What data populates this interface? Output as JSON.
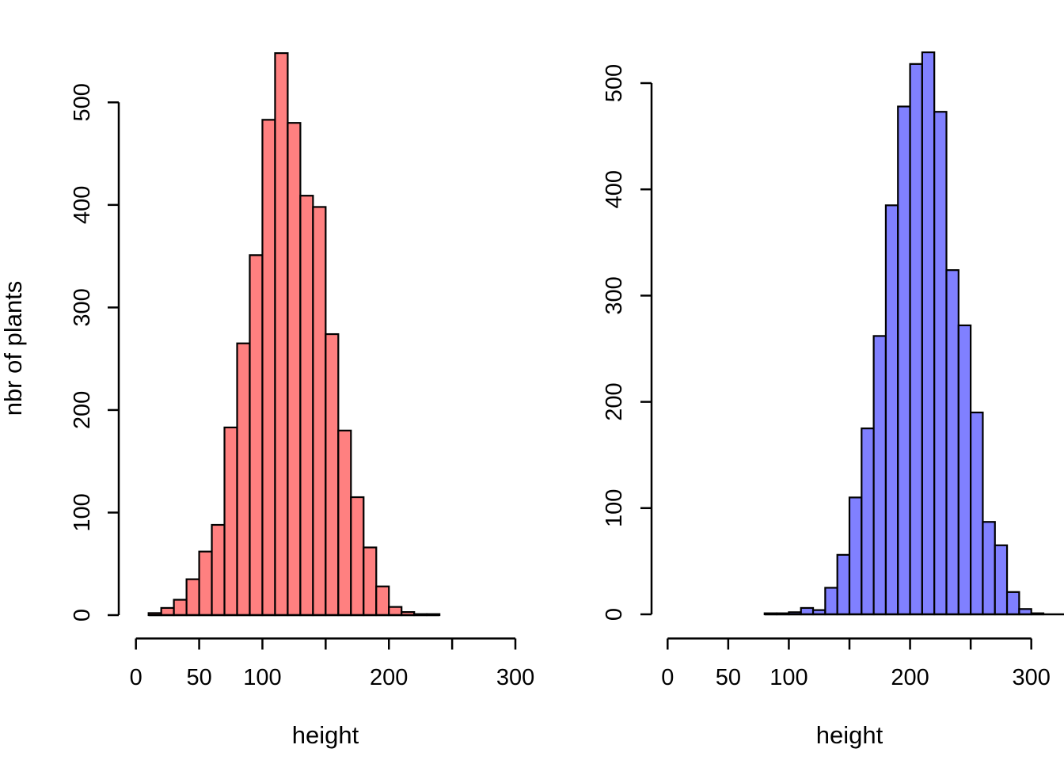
{
  "figure": {
    "background_color": "#FFFFFF",
    "description": "Two side-by-side base-R style histograms of plant heights"
  },
  "chart_data": [
    {
      "type": "bar",
      "variant": "histogram",
      "panel": "left",
      "title": "",
      "xlabel": "height",
      "ylabel": "nbr of plants",
      "bar_color": "#FF8080",
      "bar_border": "#000000",
      "grid": "off",
      "legend": "none",
      "xlim": [
        0,
        300
      ],
      "ylim": [
        0,
        550
      ],
      "bin_width": 10,
      "breaks_start": 10,
      "bins": [
        "10-20",
        "20-30",
        "30-40",
        "40-50",
        "50-60",
        "60-70",
        "70-80",
        "80-90",
        "90-100",
        "100-110",
        "110-120",
        "120-130",
        "130-140",
        "140-150",
        "150-160",
        "160-170",
        "170-180",
        "180-190",
        "190-200",
        "200-210",
        "210-220",
        "220-230",
        "230-240"
      ],
      "values": [
        2,
        7,
        15,
        35,
        62,
        88,
        183,
        265,
        351,
        483,
        548,
        480,
        409,
        398,
        274,
        180,
        115,
        66,
        28,
        8,
        3,
        1,
        1
      ],
      "x_ticks": [
        {
          "value": 0,
          "label": "0"
        },
        {
          "value": 50,
          "label": "50"
        },
        {
          "value": 100,
          "label": "100"
        },
        {
          "value": 150,
          "label": ""
        },
        {
          "value": 200,
          "label": "200"
        },
        {
          "value": 250,
          "label": ""
        },
        {
          "value": 300,
          "label": "300"
        }
      ],
      "y_ticks": [
        {
          "value": 0,
          "label": "0"
        },
        {
          "value": 100,
          "label": "100"
        },
        {
          "value": 200,
          "label": "200"
        },
        {
          "value": 300,
          "label": "300"
        },
        {
          "value": 400,
          "label": "400"
        },
        {
          "value": 500,
          "label": "500"
        }
      ]
    },
    {
      "type": "bar",
      "variant": "histogram",
      "panel": "right",
      "title": "",
      "xlabel": "height",
      "ylabel": "",
      "bar_color": "#8080FF",
      "bar_border": "#000000",
      "grid": "off",
      "legend": "none",
      "xlim": [
        0,
        300
      ],
      "ylim": [
        0,
        530
      ],
      "bin_width": 10,
      "breaks_start": 80,
      "bins": [
        "80-90",
        "90-100",
        "100-110",
        "110-120",
        "120-130",
        "130-140",
        "140-150",
        "150-160",
        "160-170",
        "170-180",
        "180-190",
        "190-200",
        "200-210",
        "210-220",
        "220-230",
        "230-240",
        "240-250",
        "250-260",
        "260-270",
        "270-280",
        "280-290",
        "290-300",
        "300-310",
        "310-320",
        "320-330"
      ],
      "values": [
        1,
        1,
        2,
        6,
        4,
        25,
        56,
        110,
        175,
        262,
        385,
        478,
        518,
        529,
        473,
        324,
        272,
        190,
        87,
        65,
        21,
        5,
        1,
        0,
        0
      ],
      "x_ticks": [
        {
          "value": 0,
          "label": "0"
        },
        {
          "value": 50,
          "label": "50"
        },
        {
          "value": 100,
          "label": "100"
        },
        {
          "value": 150,
          "label": ""
        },
        {
          "value": 200,
          "label": "200"
        },
        {
          "value": 250,
          "label": ""
        },
        {
          "value": 300,
          "label": "300"
        }
      ],
      "y_ticks": [
        {
          "value": 0,
          "label": "0"
        },
        {
          "value": 100,
          "label": "100"
        },
        {
          "value": 200,
          "label": "200"
        },
        {
          "value": 300,
          "label": "300"
        },
        {
          "value": 400,
          "label": "400"
        },
        {
          "value": 500,
          "label": "500"
        }
      ]
    }
  ]
}
